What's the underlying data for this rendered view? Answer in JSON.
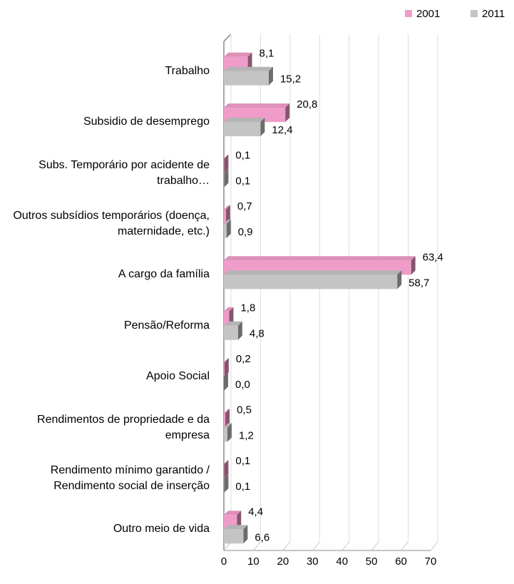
{
  "chart_data": {
    "type": "bar",
    "orientation": "horizontal",
    "categories": [
      "Trabalho",
      "Subsidio de desemprego",
      "Subs. Temporário por acidente de trabalho…",
      "Outros subsídios temporários (doença, maternidade, etc.)",
      "A cargo da família",
      "Pensão/Reforma",
      "Apoio Social",
      "Rendimentos de propriedade e da empresa",
      "Rendimento mínimo garantido / Rendimento social de inserção",
      "Outro meio de vida"
    ],
    "series": [
      {
        "name": "2001",
        "color": "#f09cc8",
        "values": [
          8.1,
          20.8,
          0.1,
          0.7,
          63.4,
          1.8,
          0.2,
          0.5,
          0.1,
          4.4
        ],
        "value_labels": [
          "8,1",
          "20,8",
          "0,1",
          "0,7",
          "63,4",
          "1,8",
          "0,2",
          "0,5",
          "0,1",
          "4,4"
        ]
      },
      {
        "name": "2011",
        "color": "#c4c4c4",
        "values": [
          15.2,
          12.4,
          0.1,
          0.9,
          58.7,
          4.8,
          0.0,
          1.2,
          0.1,
          6.6
        ],
        "value_labels": [
          "15,2",
          "12,4",
          "0,1",
          "0,9",
          "58,7",
          "4,8",
          "0,0",
          "1,2",
          "0,1",
          "6,6"
        ]
      }
    ],
    "xlim": [
      0,
      70
    ],
    "xticks": [
      0,
      10,
      20,
      30,
      40,
      50,
      60,
      70
    ],
    "grid": true,
    "legend": "top-right"
  }
}
